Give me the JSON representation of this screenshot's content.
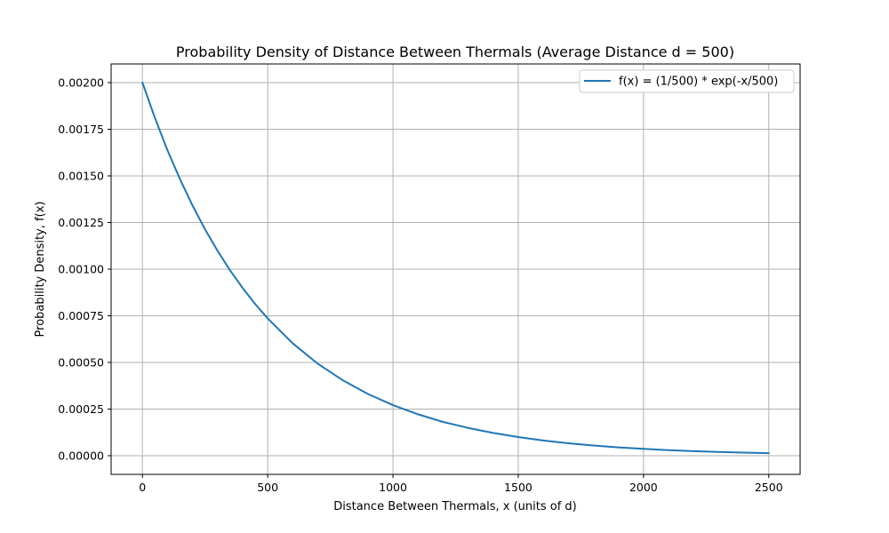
{
  "chart_data": {
    "type": "line",
    "title": "Probability Density of Distance Between Thermals (Average Distance d = 500)",
    "xlabel": "Distance Between Thermals, x (units of d)",
    "ylabel": "Probability Density, f(x)",
    "xlim": [
      -125,
      2625
    ],
    "ylim": [
      -0.0001,
      0.0021
    ],
    "x_ticks": [
      0,
      500,
      1000,
      1500,
      2000,
      2500
    ],
    "x_tick_labels": [
      "0",
      "500",
      "1000",
      "1500",
      "2000",
      "2500"
    ],
    "y_ticks": [
      0,
      0.00025,
      0.0005,
      0.00075,
      0.001,
      0.00125,
      0.0015,
      0.00175,
      0.002
    ],
    "y_tick_labels": [
      "0.00000",
      "0.00025",
      "0.00050",
      "0.00075",
      "0.00100",
      "0.00125",
      "0.00150",
      "0.00175",
      "0.00200"
    ],
    "grid": true,
    "legend_position": "top-right",
    "series": [
      {
        "name": "f(x) = (1/500) * exp(-x/500)",
        "color": "#1f77b4",
        "x": [
          0,
          50,
          100,
          150,
          200,
          250,
          300,
          350,
          400,
          450,
          500,
          600,
          700,
          800,
          900,
          1000,
          1100,
          1200,
          1300,
          1400,
          1500,
          1600,
          1700,
          1800,
          1900,
          2000,
          2100,
          2200,
          2300,
          2400,
          2500
        ],
        "y": [
          0.002,
          0.00181,
          0.001637,
          0.001482,
          0.001341,
          0.001213,
          0.001098,
          0.000993,
          0.000899,
          0.000813,
          0.000736,
          0.000602,
          0.000493,
          0.000404,
          0.000331,
          0.000271,
          0.000222,
          0.000181,
          0.000149,
          0.000122,
          0.0001,
          8.15e-05,
          6.67e-05,
          5.46e-05,
          4.47e-05,
          3.66e-05,
          3e-05,
          2.46e-05,
          2.01e-05,
          1.65e-05,
          1.35e-05
        ]
      }
    ]
  }
}
